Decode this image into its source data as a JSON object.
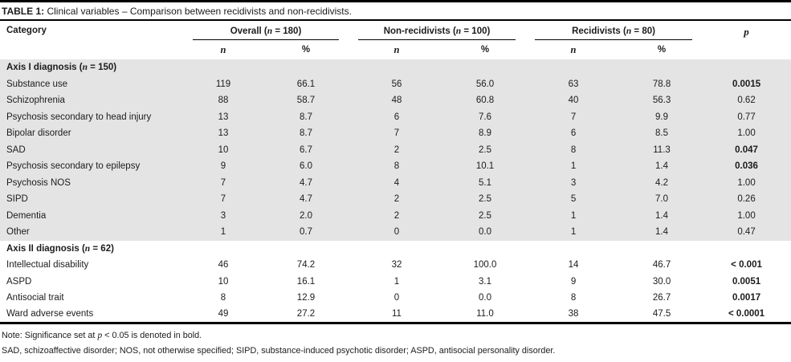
{
  "title": {
    "label": "TABLE 1:",
    "text": " Clinical variables – Comparison between recidivists and non-recidivists."
  },
  "header": {
    "category": "Category",
    "groups": [
      {
        "prefix": "Overall (",
        "var": "n",
        "suffix": " = 180)"
      },
      {
        "prefix": "Non-recidivists (",
        "var": "n",
        "suffix": " = 100)"
      },
      {
        "prefix": "Recidivists (",
        "var": "n",
        "suffix": " = 80)"
      }
    ],
    "sub_n": "n",
    "sub_pct": "%",
    "p": "p"
  },
  "rows": [
    {
      "type": "section",
      "shaded": true,
      "prefix": "Axis I diagnosis (",
      "var": "n",
      "suffix": " = 150)"
    },
    {
      "type": "data",
      "shaded": true,
      "category": "Substance use",
      "cells": [
        "119",
        "66.1",
        "56",
        "56.0",
        "63",
        "78.8"
      ],
      "p": "0.0015",
      "p_bold": true
    },
    {
      "type": "data",
      "shaded": true,
      "category": "Schizophrenia",
      "cells": [
        "88",
        "58.7",
        "48",
        "60.8",
        "40",
        "56.3"
      ],
      "p": "0.62",
      "p_bold": false
    },
    {
      "type": "data",
      "shaded": true,
      "category": "Psychosis secondary to head injury",
      "cells": [
        "13",
        "8.7",
        "6",
        "7.6",
        "7",
        "9.9"
      ],
      "p": "0.77",
      "p_bold": false
    },
    {
      "type": "data",
      "shaded": true,
      "category": "Bipolar disorder",
      "cells": [
        "13",
        "8.7",
        "7",
        "8.9",
        "6",
        "8.5"
      ],
      "p": "1.00",
      "p_bold": false
    },
    {
      "type": "data",
      "shaded": true,
      "category": "SAD",
      "cells": [
        "10",
        "6.7",
        "2",
        "2.5",
        "8",
        "11.3"
      ],
      "p": "0.047",
      "p_bold": true
    },
    {
      "type": "data",
      "shaded": true,
      "category": "Psychosis secondary to epilepsy",
      "cells": [
        "9",
        "6.0",
        "8",
        "10.1",
        "1",
        "1.4"
      ],
      "p": "0.036",
      "p_bold": true
    },
    {
      "type": "data",
      "shaded": true,
      "category": "Psychosis NOS",
      "cells": [
        "7",
        "4.7",
        "4",
        "5.1",
        "3",
        "4.2"
      ],
      "p": "1.00",
      "p_bold": false
    },
    {
      "type": "data",
      "shaded": true,
      "category": "SIPD",
      "cells": [
        "7",
        "4.7",
        "2",
        "2.5",
        "5",
        "7.0"
      ],
      "p": "0.26",
      "p_bold": false
    },
    {
      "type": "data",
      "shaded": true,
      "category": "Dementia",
      "cells": [
        "3",
        "2.0",
        "2",
        "2.5",
        "1",
        "1.4"
      ],
      "p": "1.00",
      "p_bold": false
    },
    {
      "type": "data",
      "shaded": true,
      "category": "Other",
      "cells": [
        "1",
        "0.7",
        "0",
        "0.0",
        "1",
        "1.4"
      ],
      "p": "0.47",
      "p_bold": false
    },
    {
      "type": "section",
      "shaded": false,
      "prefix": "Axis II diagnosis (",
      "var": "n",
      "suffix": " = 62)"
    },
    {
      "type": "data",
      "shaded": false,
      "category": "Intellectual disability",
      "cells": [
        "46",
        "74.2",
        "32",
        "100.0",
        "14",
        "46.7"
      ],
      "p": "< 0.001",
      "p_bold": true
    },
    {
      "type": "data",
      "shaded": false,
      "category": "ASPD",
      "cells": [
        "10",
        "16.1",
        "1",
        "3.1",
        "9",
        "30.0"
      ],
      "p": "0.0051",
      "p_bold": true
    },
    {
      "type": "data",
      "shaded": false,
      "category": "Antisocial trait",
      "cells": [
        "8",
        "12.9",
        "0",
        "0.0",
        "8",
        "26.7"
      ],
      "p": "0.0017",
      "p_bold": true
    },
    {
      "type": "data",
      "shaded": false,
      "category": "Ward adverse events",
      "cells": [
        "49",
        "27.2",
        "11",
        "11.0",
        "38",
        "47.5"
      ],
      "p": "< 0.0001",
      "p_bold": true
    }
  ],
  "notes": {
    "line1_prefix": "Note: Significance set at ",
    "line1_var": "p",
    "line1_suffix": " < 0.05 is denoted in bold.",
    "line2": "SAD, schizoaffective disorder; NOS, not otherwise specified; SIPD, substance-induced psychotic disorder; ASPD, antisocial personality disorder."
  }
}
